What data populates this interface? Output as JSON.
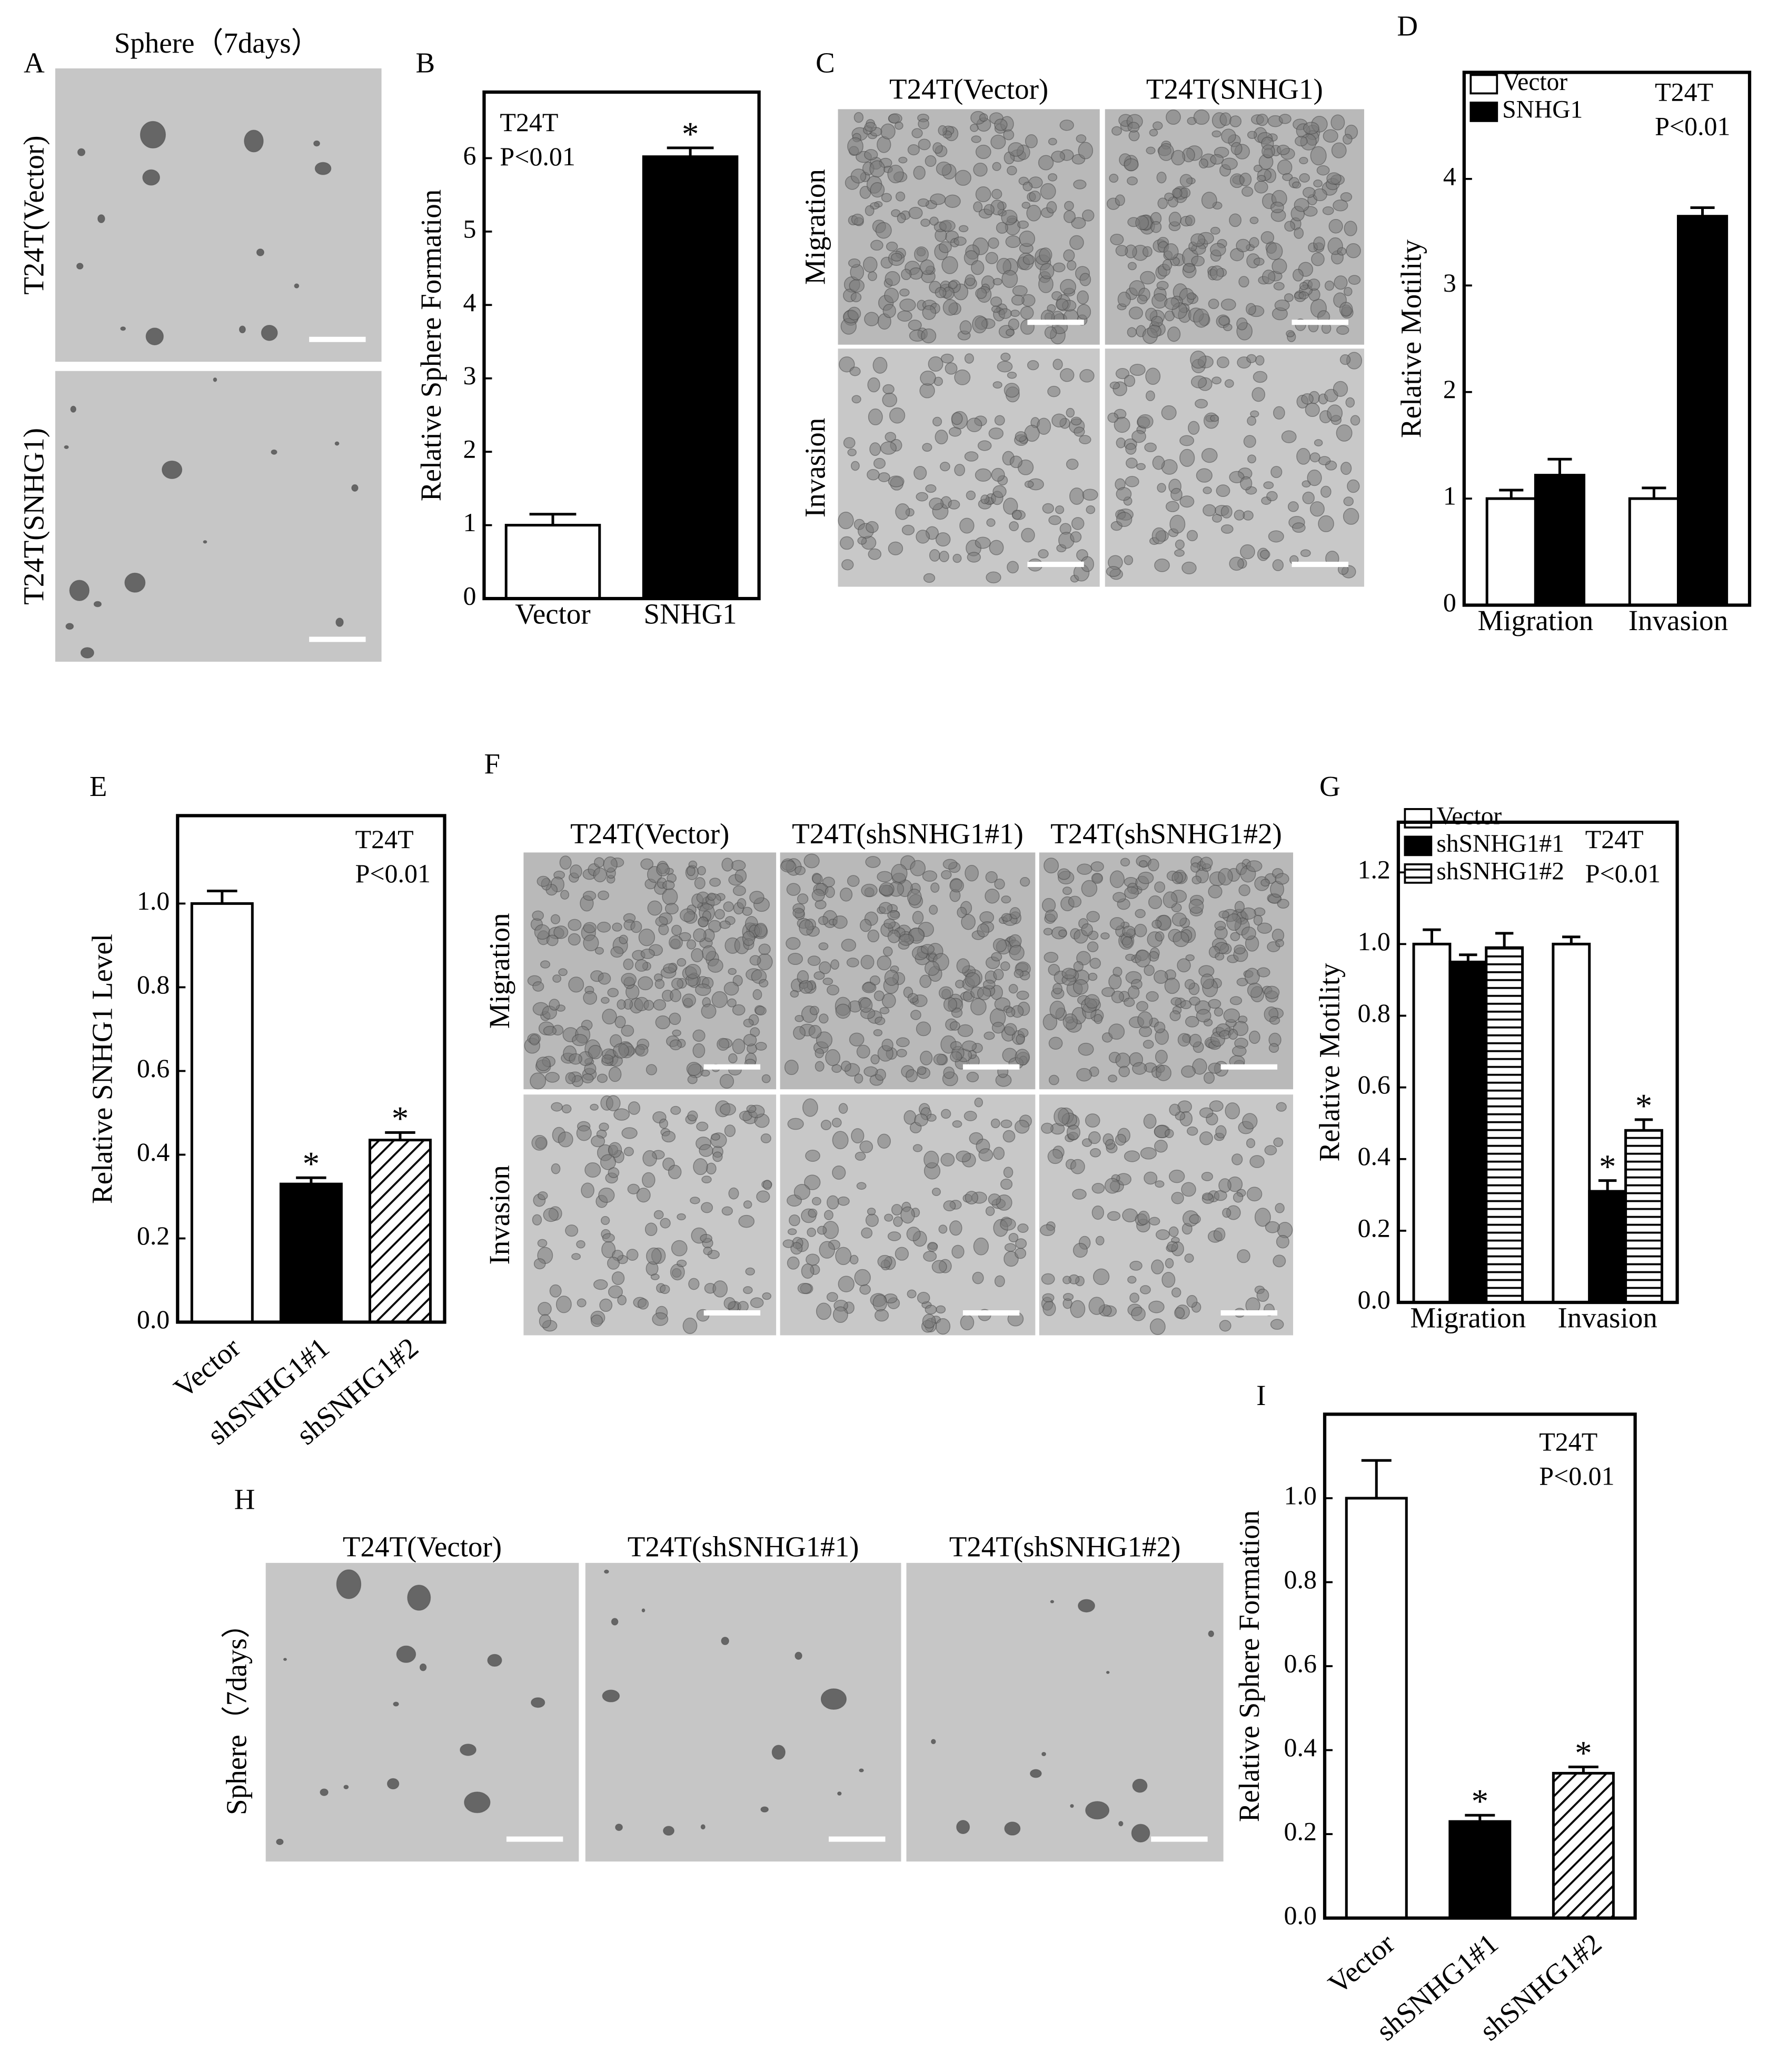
{
  "panels": [
    {
      "letter": "A",
      "title": "Sphere（7days）",
      "rows": [
        "T24T(Vector)",
        "T24T(SNHG1)"
      ]
    },
    {
      "letter": "C",
      "columns": [
        "T24T(Vector)",
        "T24T(SNHG1)"
      ],
      "rows": [
        "Migration",
        "Invasion"
      ]
    },
    {
      "letter": "F",
      "columns": [
        "T24T(Vector)",
        "T24T(shSNHG1#1)",
        "T24T(shSNHG1#2)"
      ],
      "rows": [
        "Migration",
        "Invasion"
      ]
    },
    {
      "letter": "H",
      "columns": [
        "T24T(Vector)",
        "T24T(shSNHG1#1)",
        "T24T(shSNHG1#2)"
      ],
      "rows": [
        "Sphere（7days）"
      ]
    }
  ],
  "chart_data": [
    {
      "type": "bar",
      "panel": "B",
      "ylabel": "Relative Sphere Formation",
      "annotations": [
        "T24T",
        "P<0.01"
      ],
      "categories": [
        "Vector",
        "SNHG1"
      ],
      "values": [
        1,
        6.02
      ],
      "errors": [
        0.15,
        0.12
      ],
      "fills": [
        "white",
        "black"
      ],
      "significant": [
        false,
        true
      ],
      "star": "*",
      "ylim": [
        0,
        6.9
      ],
      "yticks": [
        0,
        1,
        2,
        3,
        4,
        5,
        6
      ]
    },
    {
      "type": "grouped_bar",
      "panel": "D",
      "ylabel": "Relative Motility",
      "annotations": [
        "T24T",
        "P<0.01"
      ],
      "categories": [
        "Migration",
        "Invasion"
      ],
      "series": [
        {
          "name": "Vector",
          "fill": "white",
          "values": [
            1,
            1
          ],
          "errors": [
            0.08,
            0.1
          ],
          "significant": [
            false,
            false
          ]
        },
        {
          "name": "SNHG1",
          "fill": "black",
          "values": [
            1.22,
            3.65
          ],
          "errors": [
            0.15,
            0.08
          ],
          "significant": [
            false,
            false
          ]
        }
      ],
      "star": "*",
      "legend": "upper left",
      "ylim": [
        0,
        5
      ],
      "yticks": [
        0,
        1,
        2,
        3,
        4
      ]
    },
    {
      "type": "bar",
      "panel": "E",
      "ylabel": "Relative SNHG1 Level",
      "annotations": [
        "T24T",
        "P<0.01"
      ],
      "categories": [
        "Vector",
        "shSNHG1#1",
        "shSNHG1#2"
      ],
      "values": [
        1,
        0.33,
        0.435
      ],
      "errors": [
        0.03,
        0.015,
        0.018
      ],
      "fills": [
        "white",
        "black",
        "diagonal"
      ],
      "significant": [
        false,
        true,
        true
      ],
      "star": "*",
      "ylim": [
        0,
        1.21
      ],
      "yticks": [
        {
          "value": 0,
          "label": "0.0"
        },
        0.2,
        0.4,
        0.6,
        0.8,
        {
          "value": 1,
          "label": "1.0"
        }
      ]
    },
    {
      "type": "grouped_bar",
      "panel": "G",
      "ylabel": "Relative Motility",
      "annotations": [
        "T24T",
        "P<0.01"
      ],
      "categories": [
        "Migration",
        "Invasion"
      ],
      "series": [
        {
          "name": "Vector",
          "fill": "white",
          "values": [
            1,
            1
          ],
          "errors": [
            0.04,
            0.02
          ],
          "significant": [
            false,
            false
          ]
        },
        {
          "name": "shSNHG1#1",
          "fill": "black",
          "values": [
            0.95,
            0.31
          ],
          "errors": [
            0.02,
            0.03
          ],
          "significant": [
            false,
            true
          ]
        },
        {
          "name": "shSNHG1#2",
          "fill": "horizontal",
          "values": [
            0.99,
            0.48
          ],
          "errors": [
            0.04,
            0.03
          ],
          "significant": [
            false,
            true
          ]
        }
      ],
      "star": "*",
      "legend": "upper left",
      "ylim": [
        0,
        1.34
      ],
      "yticks": [
        {
          "value": 0,
          "label": "0.0"
        },
        0.2,
        0.4,
        0.6,
        0.8,
        {
          "value": 1,
          "label": "1.0"
        },
        1.2
      ]
    },
    {
      "type": "bar",
      "panel": "I",
      "ylabel": "Relative Sphere Formation",
      "annotations": [
        "T24T",
        "P<0.01"
      ],
      "categories": [
        "Vector",
        "shSNHG1#1",
        "shSNHG1#2"
      ],
      "values": [
        1,
        0.23,
        0.345
      ],
      "errors": [
        0.09,
        0.015,
        0.015
      ],
      "fills": [
        "white",
        "black",
        "diagonal"
      ],
      "significant": [
        false,
        true,
        true
      ],
      "star": "*",
      "ylim": [
        0,
        1.2
      ],
      "yticks": [
        {
          "value": 0,
          "label": "0.0"
        },
        0.2,
        0.4,
        0.6,
        0.8,
        {
          "value": 1,
          "label": "1.0"
        }
      ]
    }
  ]
}
